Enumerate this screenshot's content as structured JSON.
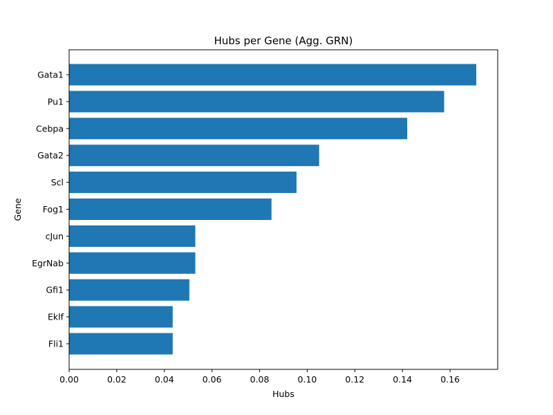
{
  "chart_data": {
    "type": "bar",
    "orientation": "horizontal",
    "title": "Hubs per Gene (Agg. GRN)",
    "xlabel": "Hubs",
    "ylabel": "Gene",
    "categories": [
      "Gata1",
      "Pu1",
      "Cebpa",
      "Gata2",
      "Scl",
      "Fog1",
      "cJun",
      "EgrNab",
      "Gfi1",
      "Eklf",
      "Fli1"
    ],
    "values": [
      0.171,
      0.1575,
      0.142,
      0.105,
      0.0955,
      0.085,
      0.053,
      0.053,
      0.0505,
      0.0435,
      0.0435
    ],
    "xlim": [
      0,
      0.18
    ],
    "xticks": [
      0.0,
      0.02,
      0.04,
      0.06,
      0.08,
      0.1,
      0.12,
      0.14,
      0.16
    ],
    "xtick_labels": [
      "0.00",
      "0.02",
      "0.04",
      "0.06",
      "0.08",
      "0.10",
      "0.12",
      "0.14",
      "0.16"
    ],
    "bar_color": "#1f77b4",
    "grid": false,
    "legend": "none"
  }
}
